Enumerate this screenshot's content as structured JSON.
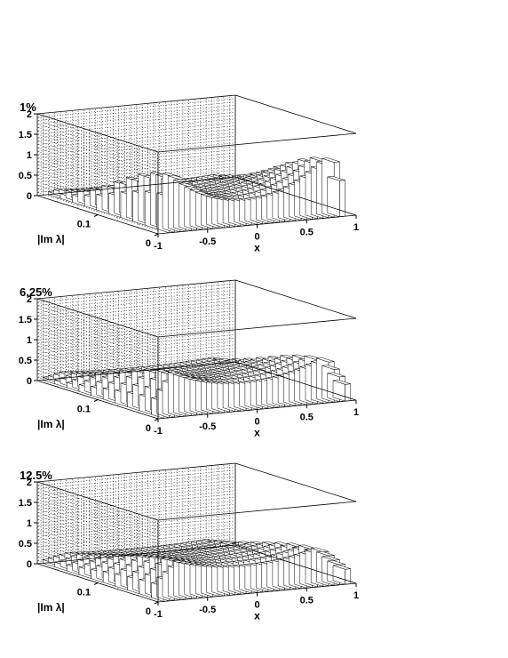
{
  "chart_data": [
    {
      "type": "lego3d",
      "label": "1%",
      "xlabel": "x",
      "ylabel": "|Im λ|",
      "xlim": [
        -1,
        1
      ],
      "ylim": [
        0,
        0.2
      ],
      "zlim": [
        0,
        2
      ],
      "x_ticks": [
        "-1",
        "-0.5",
        "0",
        "0.5",
        "1"
      ],
      "y_ticks": [
        "0",
        "0.1"
      ],
      "z_ticks": [
        "0",
        "0.5",
        "1",
        "1.5",
        "2"
      ],
      "grid": true,
      "surface": {
        "peak_edge_x": 0.8,
        "center_value": 0.55,
        "edge_value": 1.4,
        "cutoff_x": 0.9,
        "y_spread": 0.12
      }
    },
    {
      "type": "lego3d",
      "label": "6.25%",
      "xlabel": "x",
      "ylabel": "|Im λ|",
      "xlim": [
        -1,
        1
      ],
      "ylim": [
        0,
        0.2
      ],
      "zlim": [
        0,
        2
      ],
      "x_ticks": [
        "-1",
        "-0.5",
        "0",
        "0.5",
        "1"
      ],
      "y_ticks": [
        "0",
        "0.1"
      ],
      "z_ticks": [
        "0",
        "0.5",
        "1",
        "1.5",
        "2"
      ],
      "grid": true,
      "surface": {
        "peak_edge_x": 0.75,
        "center_value": 0.6,
        "edge_value": 1.0,
        "cutoff_x": 0.92,
        "y_spread": 0.14
      }
    },
    {
      "type": "lego3d",
      "label": "12.5%",
      "xlabel": "x",
      "ylabel": "|Im λ|",
      "xlim": [
        -1,
        1
      ],
      "ylim": [
        0,
        0.2
      ],
      "zlim": [
        0,
        2
      ],
      "x_ticks": [
        "-1",
        "-0.5",
        "0",
        "0.5",
        "1"
      ],
      "y_ticks": [
        "0",
        "0.1"
      ],
      "z_ticks": [
        "0",
        "0.5",
        "1",
        "1.5",
        "2"
      ],
      "grid": true,
      "surface": {
        "peak_edge_x": 0.7,
        "center_value": 0.6,
        "edge_value": 0.85,
        "cutoff_x": 0.93,
        "y_spread": 0.16
      }
    }
  ]
}
